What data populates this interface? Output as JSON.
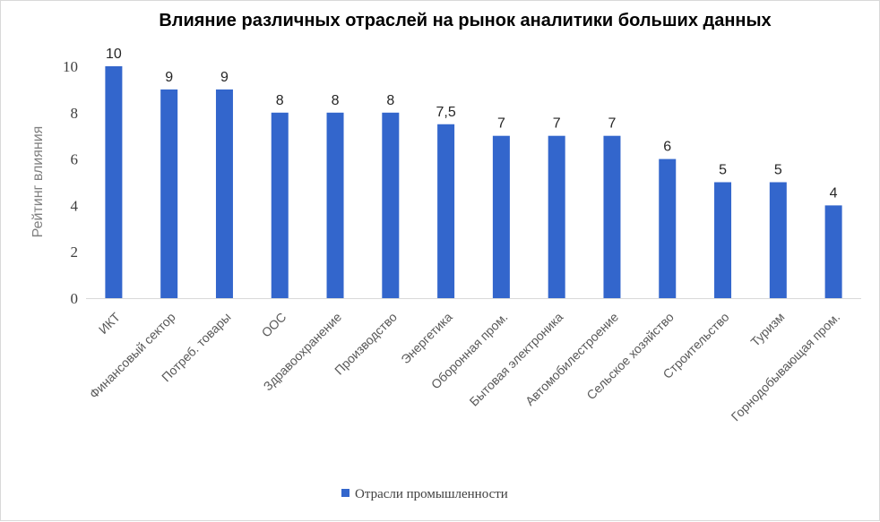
{
  "chart_data": {
    "type": "bar",
    "title": "Влияние различных отраслей на рынок аналитики больших данных",
    "ylabel": "Рейтинг влияния",
    "xlabel": "",
    "ylim": [
      0,
      10
    ],
    "yticks": [
      "0",
      "2",
      "4",
      "6",
      "8",
      "10"
    ],
    "grid": false,
    "legend_position": "bottom",
    "categories": [
      "ИКТ",
      "Финансовый сектор",
      "Потреб. товары",
      "ООС",
      "Здравоохранение",
      "Производство",
      "Энергетика",
      "Оборонная пром.",
      "Бытовая электроника",
      "Автомобилестроение",
      "Сельское хозяйство",
      "Строительство",
      "Туризм",
      "Горнодобывающая пром."
    ],
    "series": [
      {
        "name": "Отрасли промышленности",
        "color": "#3366cc",
        "values": [
          10,
          9,
          9,
          8,
          8,
          8,
          7.5,
          7,
          7,
          7,
          6,
          5,
          5,
          4
        ],
        "labels": [
          "10",
          "9",
          "9",
          "8",
          "8",
          "8",
          "7,5",
          "7",
          "7",
          "7",
          "6",
          "5",
          "5",
          "4"
        ]
      }
    ]
  }
}
